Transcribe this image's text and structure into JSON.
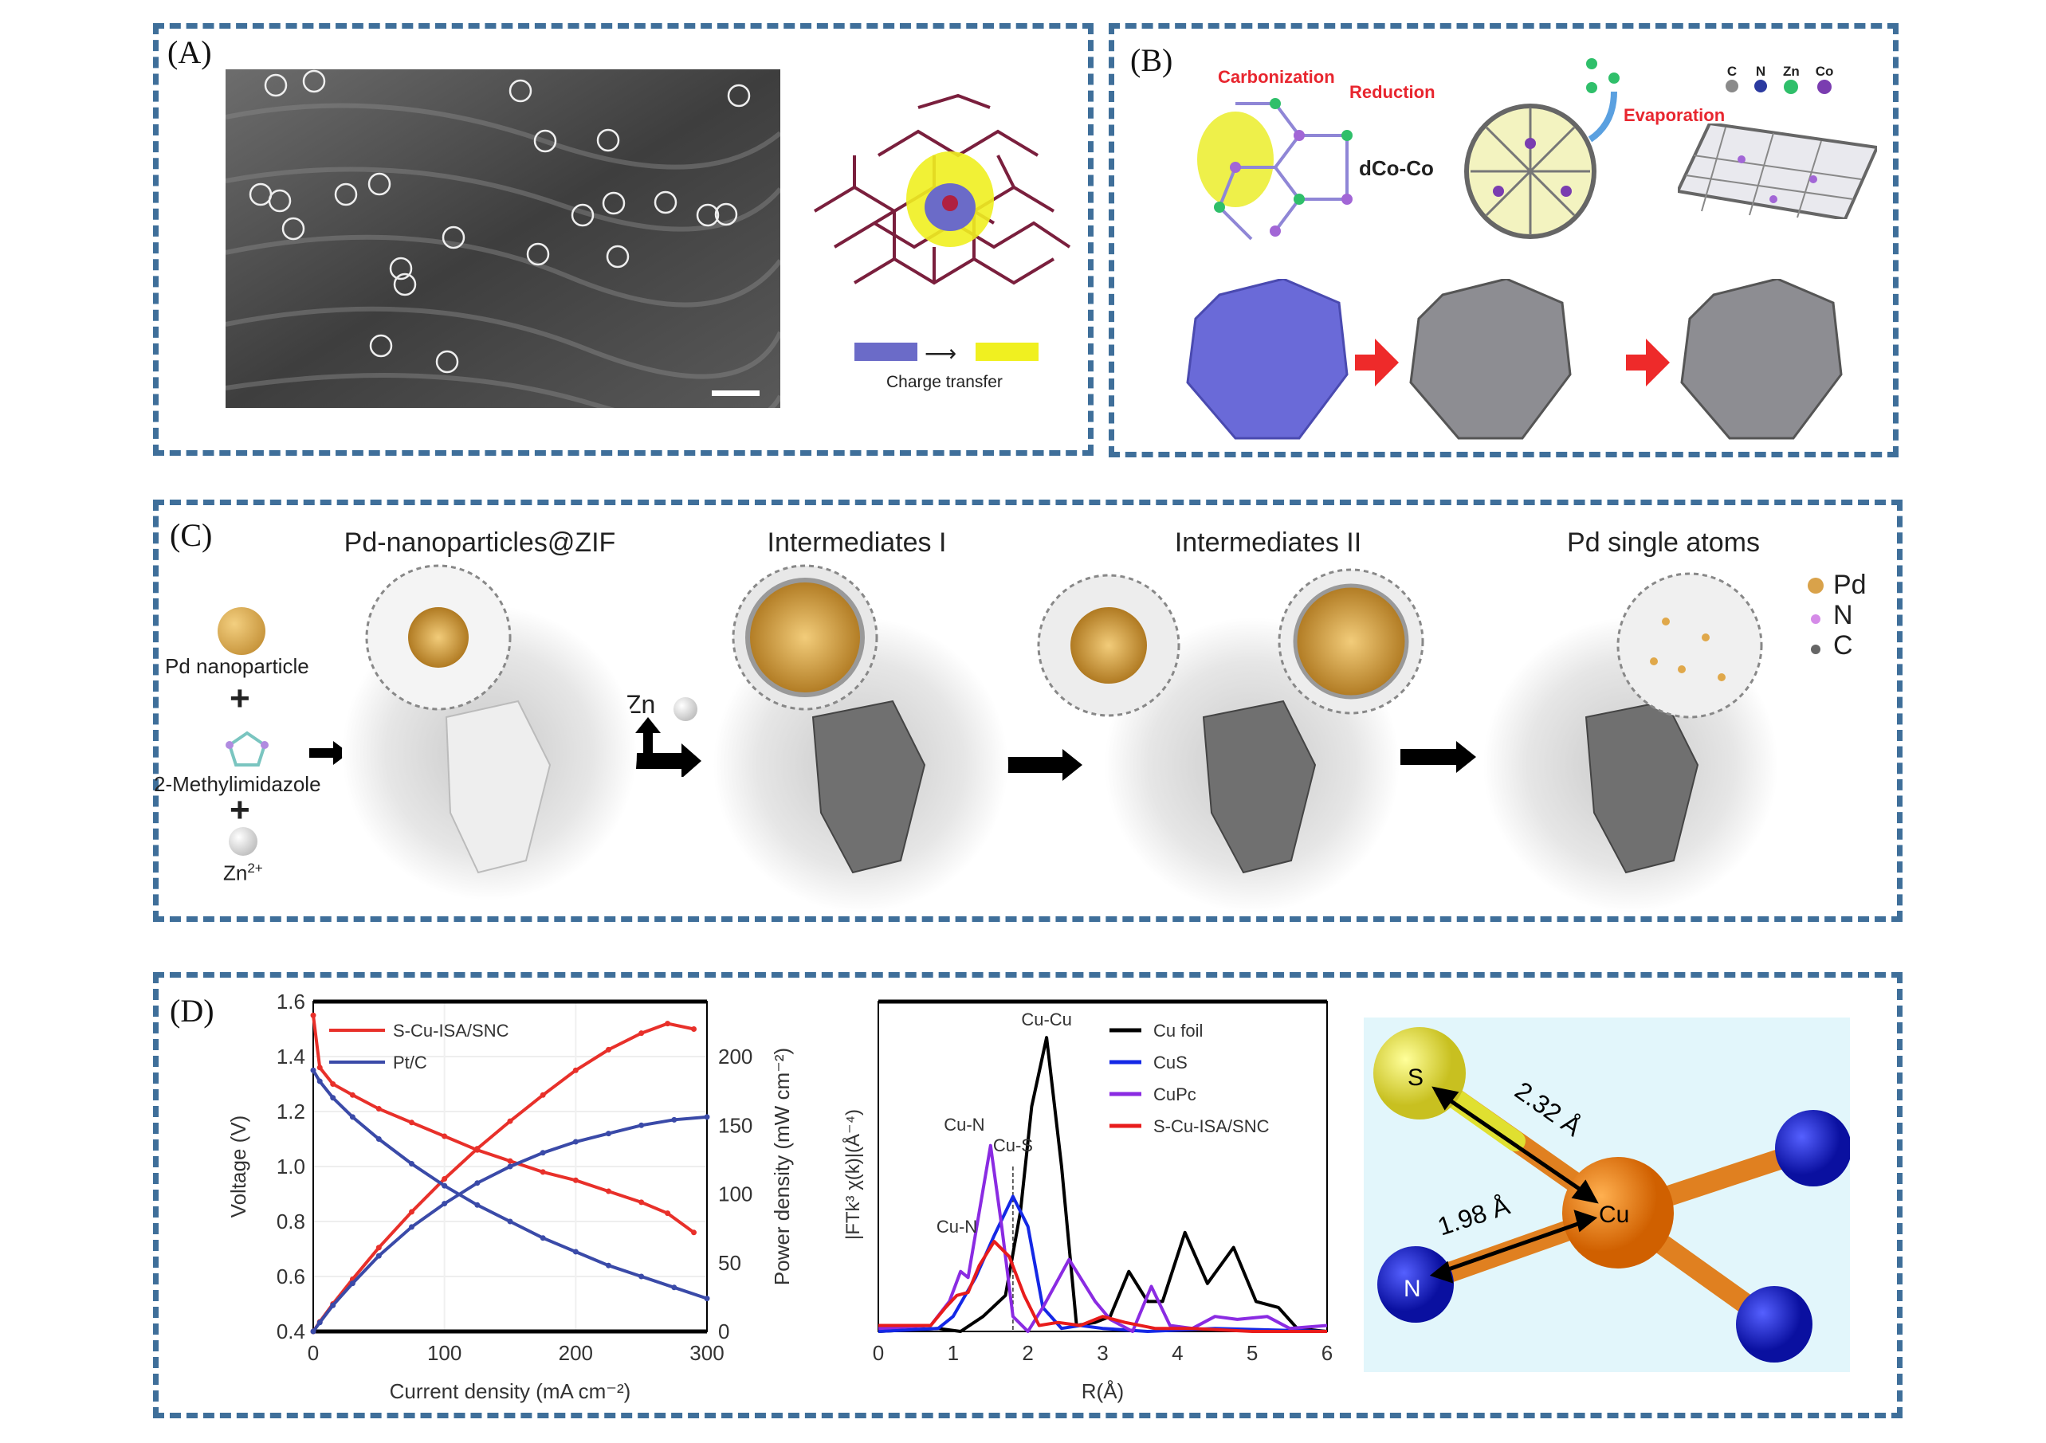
{
  "panels": {
    "a": {
      "label": "(A)",
      "legend_text": "Charge transfer",
      "colors": {
        "blue": "#6b6bc8",
        "yellow": "#f0f020",
        "bond": "#7a1f3d"
      }
    },
    "b": {
      "label": "(B)",
      "carbonization": "Carbonization",
      "reduction": "Reduction",
      "evaporation": "Evaporation",
      "distance": "dCo-Co",
      "legend": [
        {
          "label": "C",
          "color": "#8a8a8a"
        },
        {
          "label": "N",
          "color": "#2b3aa0"
        },
        {
          "label": "Zn",
          "color": "#2fbf6a"
        },
        {
          "label": "Co",
          "color": "#7a3db0"
        }
      ]
    },
    "c": {
      "label": "(C)",
      "stages": [
        "Pd-nanoparticles@ZIF",
        "Intermediates I",
        "Intermediates II",
        "Pd single atoms"
      ],
      "pd_nanoparticle": "Pd nanoparticle",
      "ligand": "2-Methylimidazole",
      "zn_ion": "Zn",
      "zn_ion_charge": "2+",
      "zn": "Zn",
      "plus": "+",
      "legend": [
        {
          "label": "Pd",
          "color": "#d9a24a"
        },
        {
          "label": "N",
          "color": "#d58be8"
        },
        {
          "label": "C",
          "color": "#666666"
        }
      ]
    },
    "d": {
      "label": "(D)",
      "molecule": {
        "s": "S",
        "cu": "Cu",
        "n": "N",
        "d_cus": "2.32 Å",
        "d_cun": "1.98 Å"
      }
    }
  },
  "chart_data": [
    {
      "type": "line",
      "title": "",
      "xlabel": "Current density (mA cm⁻²)",
      "ylabel": "Voltage (V)",
      "y2label": "Power density (mW cm⁻²)",
      "xlim": [
        0,
        300
      ],
      "ylim": [
        0.4,
        1.6
      ],
      "y2lim": [
        0,
        240
      ],
      "xticks": [
        "0",
        "100",
        "200",
        "300"
      ],
      "yticks": [
        "0.4",
        "0.6",
        "0.8",
        "1.0",
        "1.2",
        "1.4",
        "1.6"
      ],
      "y2ticks": [
        "0",
        "50",
        "100",
        "150",
        "200"
      ],
      "legend": "top-left",
      "series": [
        {
          "name": "S-Cu-ISA/SNC",
          "color": "#e8302a",
          "x": [
            0,
            5,
            15,
            30,
            50,
            75,
            100,
            125,
            150,
            175,
            200,
            225,
            250,
            270,
            290
          ],
          "voltage": [
            1.55,
            1.36,
            1.3,
            1.26,
            1.21,
            1.16,
            1.11,
            1.06,
            1.02,
            0.98,
            0.95,
            0.91,
            0.87,
            0.83,
            0.76
          ],
          "power": [
            0,
            7,
            20,
            38,
            61,
            87,
            111,
            133,
            153,
            172,
            190,
            205,
            217,
            224,
            220
          ]
        },
        {
          "name": "Pt/C",
          "color": "#3a4aa8",
          "x": [
            0,
            5,
            15,
            30,
            50,
            75,
            100,
            125,
            150,
            175,
            200,
            225,
            250,
            275,
            300
          ],
          "voltage": [
            1.35,
            1.31,
            1.25,
            1.18,
            1.1,
            1.01,
            0.93,
            0.86,
            0.8,
            0.74,
            0.69,
            0.64,
            0.6,
            0.56,
            0.52
          ],
          "power": [
            0,
            6.5,
            19,
            35,
            55,
            76,
            93,
            108,
            120,
            130,
            138,
            144,
            150,
            154,
            156
          ]
        }
      ]
    },
    {
      "type": "line",
      "title": "",
      "xlabel": "R(Å)",
      "ylabel": "|FTk³ χ(k)|(Å⁻⁴)",
      "xlim": [
        0,
        6
      ],
      "ylim": [
        0,
        1.1
      ],
      "xticks": [
        "0",
        "1",
        "2",
        "3",
        "4",
        "5",
        "6"
      ],
      "legend": "top-right",
      "annotations": [
        "Cu-Cu",
        "Cu-S",
        "Cu-N",
        "Cu-N"
      ],
      "series": [
        {
          "name": "Cu foil",
          "color": "#000000",
          "x": [
            0,
            0.8,
            1.1,
            1.4,
            1.7,
            1.9,
            2.05,
            2.25,
            2.45,
            2.65,
            2.9,
            3.1,
            3.35,
            3.6,
            3.8,
            4.1,
            4.4,
            4.75,
            5.05,
            5.35,
            5.6,
            6
          ],
          "y": [
            0,
            0.01,
            0.0,
            0.05,
            0.12,
            0.4,
            0.75,
            0.98,
            0.55,
            0.02,
            0.03,
            0.05,
            0.2,
            0.1,
            0.1,
            0.33,
            0.16,
            0.28,
            0.1,
            0.08,
            0.01,
            0
          ]
        },
        {
          "name": "CuS",
          "color": "#1428e6",
          "x": [
            0,
            0.8,
            1.0,
            1.3,
            1.55,
            1.8,
            2.0,
            2.2,
            2.45,
            2.7,
            3.0,
            3.6,
            4.5,
            6
          ],
          "y": [
            0,
            0.01,
            0.05,
            0.18,
            0.32,
            0.45,
            0.35,
            0.08,
            0.01,
            0.02,
            0.01,
            0.0,
            0.01,
            0
          ]
        },
        {
          "name": "CuPc",
          "color": "#8a2be2",
          "x": [
            0,
            0.7,
            0.95,
            1.1,
            1.2,
            1.35,
            1.5,
            1.65,
            1.8,
            2.0,
            2.2,
            2.55,
            2.9,
            3.1,
            3.4,
            3.65,
            3.9,
            4.2,
            4.5,
            4.8,
            5.2,
            5.5,
            6
          ],
          "y": [
            0.01,
            0.02,
            0.1,
            0.2,
            0.18,
            0.4,
            0.62,
            0.35,
            0.05,
            0.0,
            0.08,
            0.24,
            0.1,
            0.04,
            0.0,
            0.15,
            0.02,
            0.01,
            0.05,
            0.04,
            0.05,
            0.01,
            0.02
          ]
        },
        {
          "name": "S-Cu-ISA/SNC",
          "color": "#e81c1c",
          "x": [
            0,
            0.7,
            0.9,
            1.05,
            1.2,
            1.35,
            1.55,
            1.75,
            1.95,
            2.15,
            2.4,
            2.7,
            3.0,
            3.3,
            3.7,
            4.2,
            5,
            6
          ],
          "y": [
            0.02,
            0.02,
            0.08,
            0.12,
            0.13,
            0.22,
            0.3,
            0.25,
            0.12,
            0.02,
            0.03,
            0.02,
            0.05,
            0.03,
            0.01,
            0.01,
            0.0,
            0.0
          ]
        }
      ]
    }
  ]
}
